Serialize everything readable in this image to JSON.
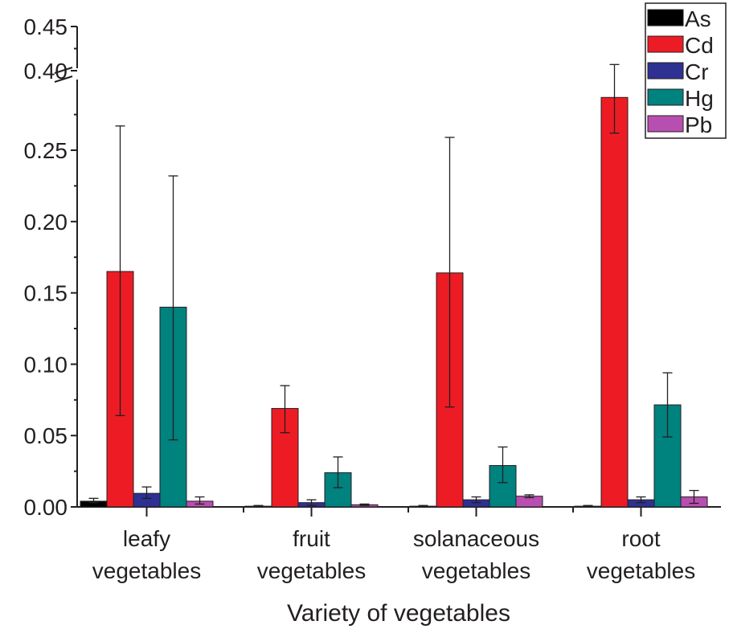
{
  "chart_data": {
    "type": "bar",
    "xlabel": "Variety of vegetables",
    "ylabel": "",
    "categories": [
      [
        "leafy",
        "vegetables"
      ],
      [
        "fruit",
        "vegetables"
      ],
      [
        "solanaceous",
        "vegetables"
      ],
      [
        "root",
        "vegetables"
      ]
    ],
    "y_axis_break": [
      0.29,
      0.395
    ],
    "ylim": [
      0,
      0.45
    ],
    "yticks": [
      "0.00",
      "0.05",
      "0.10",
      "0.15",
      "0.20",
      "0.25",
      "0.40",
      "0.45"
    ],
    "legend_position": "top-right",
    "grid": false,
    "series": [
      {
        "name": "As",
        "color": "#000000",
        "values": [
          0.004,
          0.0005,
          0.0005,
          0.0005
        ],
        "err_high": [
          0.006,
          0.001,
          0.001,
          0.001
        ],
        "err_low": [
          0.003,
          0.0,
          0.0,
          0.0
        ]
      },
      {
        "name": "Cd",
        "color": "#ed1c24",
        "values": [
          0.165,
          0.069,
          0.164,
          0.287
        ],
        "err_high": [
          0.267,
          0.085,
          0.259,
          0.407
        ],
        "err_low": [
          0.064,
          0.052,
          0.07,
          0.262
        ]
      },
      {
        "name": "Cr",
        "color": "#2e3192",
        "values": [
          0.0095,
          0.003,
          0.005,
          0.005
        ],
        "err_high": [
          0.014,
          0.005,
          0.007,
          0.007
        ],
        "err_low": [
          0.006,
          0.001,
          0.003,
          0.003
        ]
      },
      {
        "name": "Hg",
        "color": "#00827f",
        "values": [
          0.14,
          0.024,
          0.029,
          0.0715
        ],
        "err_high": [
          0.232,
          0.035,
          0.042,
          0.094
        ],
        "err_low": [
          0.047,
          0.0135,
          0.017,
          0.049
        ]
      },
      {
        "name": "Pb",
        "color": "#b84fb0",
        "values": [
          0.004,
          0.0015,
          0.0075,
          0.007
        ],
        "err_high": [
          0.007,
          0.002,
          0.0085,
          0.0115
        ],
        "err_low": [
          0.002,
          0.001,
          0.0065,
          0.0025
        ]
      }
    ]
  }
}
